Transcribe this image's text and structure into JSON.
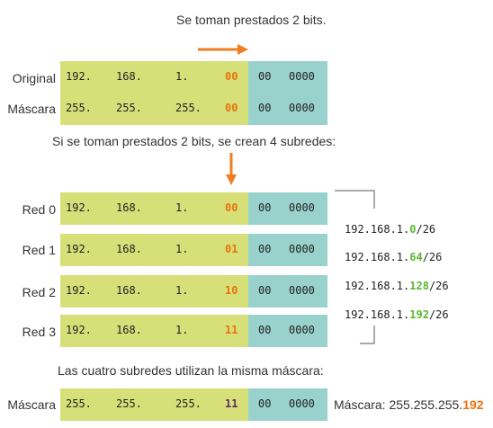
{
  "captions": {
    "borrow": "Se toman prestados 2 bits.",
    "result": "Si se toman prestados 2 bits, se crean 4 subredes:",
    "same_mask": "Las cuatro subredes utilizan la misma máscara:"
  },
  "top_rows": [
    {
      "label": "Original",
      "o1": "192.",
      "o2": "168.",
      "o3": "1.",
      "bits": "00",
      "r1": "00",
      "r2": "0000"
    },
    {
      "label": "Máscara",
      "o1": "255.",
      "o2": "255.",
      "o3": "255.",
      "bits": "00",
      "r1": "00",
      "r2": "0000"
    }
  ],
  "subnet_rows": [
    {
      "label": "Red 0",
      "o1": "192.",
      "o2": "168.",
      "o3": "1.",
      "bits": "00",
      "r1": "00",
      "r2": "0000"
    },
    {
      "label": "Red 1",
      "o1": "192.",
      "o2": "168.",
      "o3": "1.",
      "bits": "01",
      "r1": "00",
      "r2": "0000"
    },
    {
      "label": "Red 2",
      "o1": "192.",
      "o2": "168.",
      "o3": "1.",
      "bits": "10",
      "r1": "00",
      "r2": "0000"
    },
    {
      "label": "Red 3",
      "o1": "192.",
      "o2": "168.",
      "o3": "1.",
      "bits": "11",
      "r1": "00",
      "r2": "0000"
    }
  ],
  "networks": [
    {
      "prefix": "192.168.1.",
      "sub": "0",
      "suffix": "/26"
    },
    {
      "prefix": "192.168.1.",
      "sub": "64",
      "suffix": "/26"
    },
    {
      "prefix": "192.168.1.",
      "sub": "128",
      "suffix": "/26"
    },
    {
      "prefix": "192.168.1.",
      "sub": "192",
      "suffix": "/26"
    }
  ],
  "final_mask_row": {
    "label": "Máscara",
    "o1": "255.",
    "o2": "255.",
    "o3": "255.",
    "bits": "11",
    "r1": "00",
    "r2": "0000"
  },
  "final_mask_note": {
    "prefix": "Máscara: 255.255.255.",
    "sub": "192"
  },
  "colors": {
    "network_bar": "#d7df78",
    "host_bar": "#99d2cc",
    "borrowed_bits": "#e8730f",
    "final_bits": "#5a2d6e",
    "subnet_value": "#5ab82e",
    "mask_value": "#e8730f",
    "arrow": "#ef7d22"
  }
}
